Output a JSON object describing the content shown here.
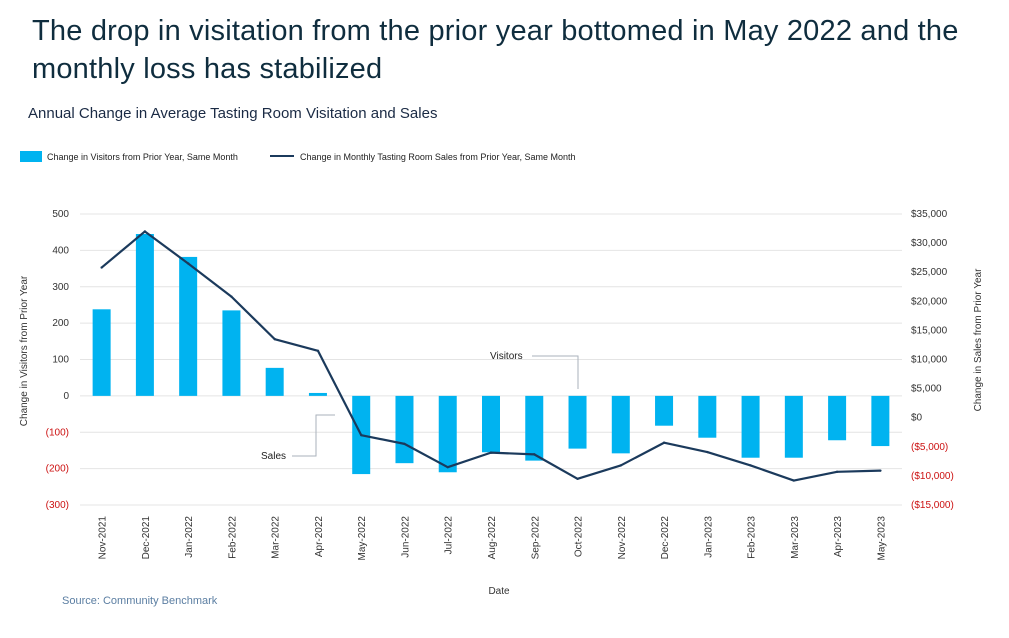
{
  "headline": "The drop in visitation from the prior year bottomed in May 2022 and the monthly loss has stabilized",
  "source": "Source: Community Benchmark",
  "colors": {
    "bars": "#00b3f0",
    "line": "#1b3a5c",
    "negative": "#cc1111",
    "grid": "#e4e4e4"
  },
  "chart_data": {
    "type": "bar+line",
    "title": "Annual Change in Average Tasting Room Visitation and Sales",
    "xlabel": "Date",
    "ylabel": "Change in Visitors from Prior Year",
    "y2label": "Change in Sales from Prior Year",
    "ylim": [
      -300,
      500
    ],
    "y2lim": [
      -15000,
      35000
    ],
    "yticks": [
      500,
      400,
      300,
      200,
      100,
      0,
      -100,
      -200,
      -300
    ],
    "ytick_labels": [
      "500",
      "400",
      "300",
      "200",
      "100",
      "0",
      "(100)",
      "(200)",
      "(300)"
    ],
    "y2ticks": [
      35000,
      30000,
      25000,
      20000,
      15000,
      10000,
      5000,
      0,
      -5000,
      -10000,
      -15000
    ],
    "y2tick_labels": [
      "$35,000",
      "$30,000",
      "$25,000",
      "$20,000",
      "$15,000",
      "$10,000",
      "$5,000",
      "$0",
      "($5,000)",
      "($10,000)",
      "($15,000)"
    ],
    "categories": [
      "Nov-2021",
      "Dec-2021",
      "Jan-2022",
      "Feb-2022",
      "Mar-2022",
      "Apr-2022",
      "May-2022",
      "Jun-2022",
      "Jul-2022",
      "Aug-2022",
      "Sep-2022",
      "Oct-2022",
      "Nov-2022",
      "Dec-2022",
      "Jan-2023",
      "Feb-2023",
      "Mar-2023",
      "Apr-2023",
      "May-2023"
    ],
    "series": [
      {
        "name": "Change in Visitors from Prior Year, Same Month",
        "type": "bar",
        "axis": "left",
        "values": [
          238,
          445,
          382,
          235,
          77,
          8,
          -215,
          -185,
          -210,
          -155,
          -178,
          -145,
          -158,
          -82,
          -115,
          -170,
          -170,
          -122,
          -138
        ]
      },
      {
        "name": "Change in Monthly Tasting Room Sales from Prior Year, Same Month",
        "type": "line",
        "axis": "right",
        "values": [
          25800,
          32000,
          26500,
          20800,
          13500,
          11500,
          -3000,
          -4500,
          -8500,
          -6000,
          -6300,
          -10500,
          -8200,
          -4300,
          -5900,
          -8200,
          -10800,
          -9300,
          -9100
        ]
      }
    ],
    "annotations": [
      {
        "text": "Visitors"
      },
      {
        "text": "Sales"
      }
    ]
  }
}
